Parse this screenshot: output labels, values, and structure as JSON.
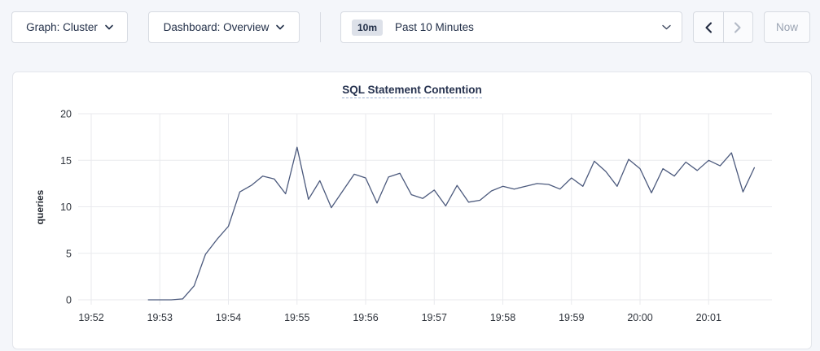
{
  "toolbar": {
    "graph_dropdown": {
      "label": "Graph: Cluster"
    },
    "dashboard_dropdown": {
      "label": "Dashboard: Overview"
    },
    "time_picker": {
      "badge": "10m",
      "label": "Past 10 Minutes"
    },
    "back_button": "chevron-left",
    "forward_button": "chevron-right",
    "now_label": "Now"
  },
  "chart": {
    "title": "SQL Statement Contention"
  },
  "colors": {
    "line": "#4c5a7d",
    "grid": "#e9eaee",
    "title_navy": "#26324f",
    "page_background": "#f4f6fa",
    "disabled_text": "#9aa3b2"
  },
  "chart_data": {
    "type": "line",
    "title": "SQL Statement Contention",
    "xlabel": "",
    "ylabel": "queries",
    "ylim": [
      0,
      20
    ],
    "y_ticks": [
      0,
      5,
      10,
      15,
      20
    ],
    "x_ticks": [
      "19:52",
      "19:53",
      "19:54",
      "19:55",
      "19:56",
      "19:57",
      "19:58",
      "19:59",
      "20:00",
      "20:01"
    ],
    "grid": true,
    "legend": "none",
    "line_color": "#4c5a7d",
    "series": [
      {
        "name": "SQL Statement Contention",
        "points": [
          [
            "19:52:50",
            0
          ],
          [
            "19:53:00",
            0
          ],
          [
            "19:53:10",
            0
          ],
          [
            "19:53:20",
            0.1
          ],
          [
            "19:53:30",
            1.5
          ],
          [
            "19:53:40",
            4.9
          ],
          [
            "19:53:50",
            6.5
          ],
          [
            "19:54:00",
            7.9
          ],
          [
            "19:54:10",
            11.6
          ],
          [
            "19:54:20",
            12.3
          ],
          [
            "19:54:30",
            13.3
          ],
          [
            "19:54:40",
            13.0
          ],
          [
            "19:54:50",
            11.4
          ],
          [
            "19:55:00",
            16.4
          ],
          [
            "19:55:10",
            10.8
          ],
          [
            "19:55:20",
            12.8
          ],
          [
            "19:55:30",
            9.9
          ],
          [
            "19:55:40",
            11.7
          ],
          [
            "19:55:50",
            13.5
          ],
          [
            "19:56:00",
            13.1
          ],
          [
            "19:56:10",
            10.4
          ],
          [
            "19:56:20",
            13.2
          ],
          [
            "19:56:30",
            13.6
          ],
          [
            "19:56:40",
            11.3
          ],
          [
            "19:56:50",
            10.9
          ],
          [
            "19:57:00",
            11.8
          ],
          [
            "19:57:10",
            10.1
          ],
          [
            "19:57:20",
            12.3
          ],
          [
            "19:57:30",
            10.5
          ],
          [
            "19:57:40",
            10.7
          ],
          [
            "19:57:50",
            11.7
          ],
          [
            "19:58:00",
            12.2
          ],
          [
            "19:58:10",
            11.9
          ],
          [
            "19:58:20",
            12.2
          ],
          [
            "19:58:30",
            12.5
          ],
          [
            "19:58:40",
            12.4
          ],
          [
            "19:58:50",
            11.9
          ],
          [
            "19:59:00",
            13.1
          ],
          [
            "19:59:10",
            12.2
          ],
          [
            "19:59:20",
            14.9
          ],
          [
            "19:59:30",
            13.8
          ],
          [
            "19:59:40",
            12.2
          ],
          [
            "19:59:50",
            15.1
          ],
          [
            "20:00:00",
            14.1
          ],
          [
            "20:00:10",
            11.5
          ],
          [
            "20:00:20",
            14.1
          ],
          [
            "20:00:30",
            13.3
          ],
          [
            "20:00:40",
            14.8
          ],
          [
            "20:00:50",
            13.9
          ],
          [
            "20:01:00",
            15.0
          ],
          [
            "20:01:10",
            14.4
          ],
          [
            "20:01:20",
            15.8
          ],
          [
            "20:01:30",
            11.6
          ],
          [
            "20:01:40",
            14.2
          ]
        ]
      }
    ]
  }
}
